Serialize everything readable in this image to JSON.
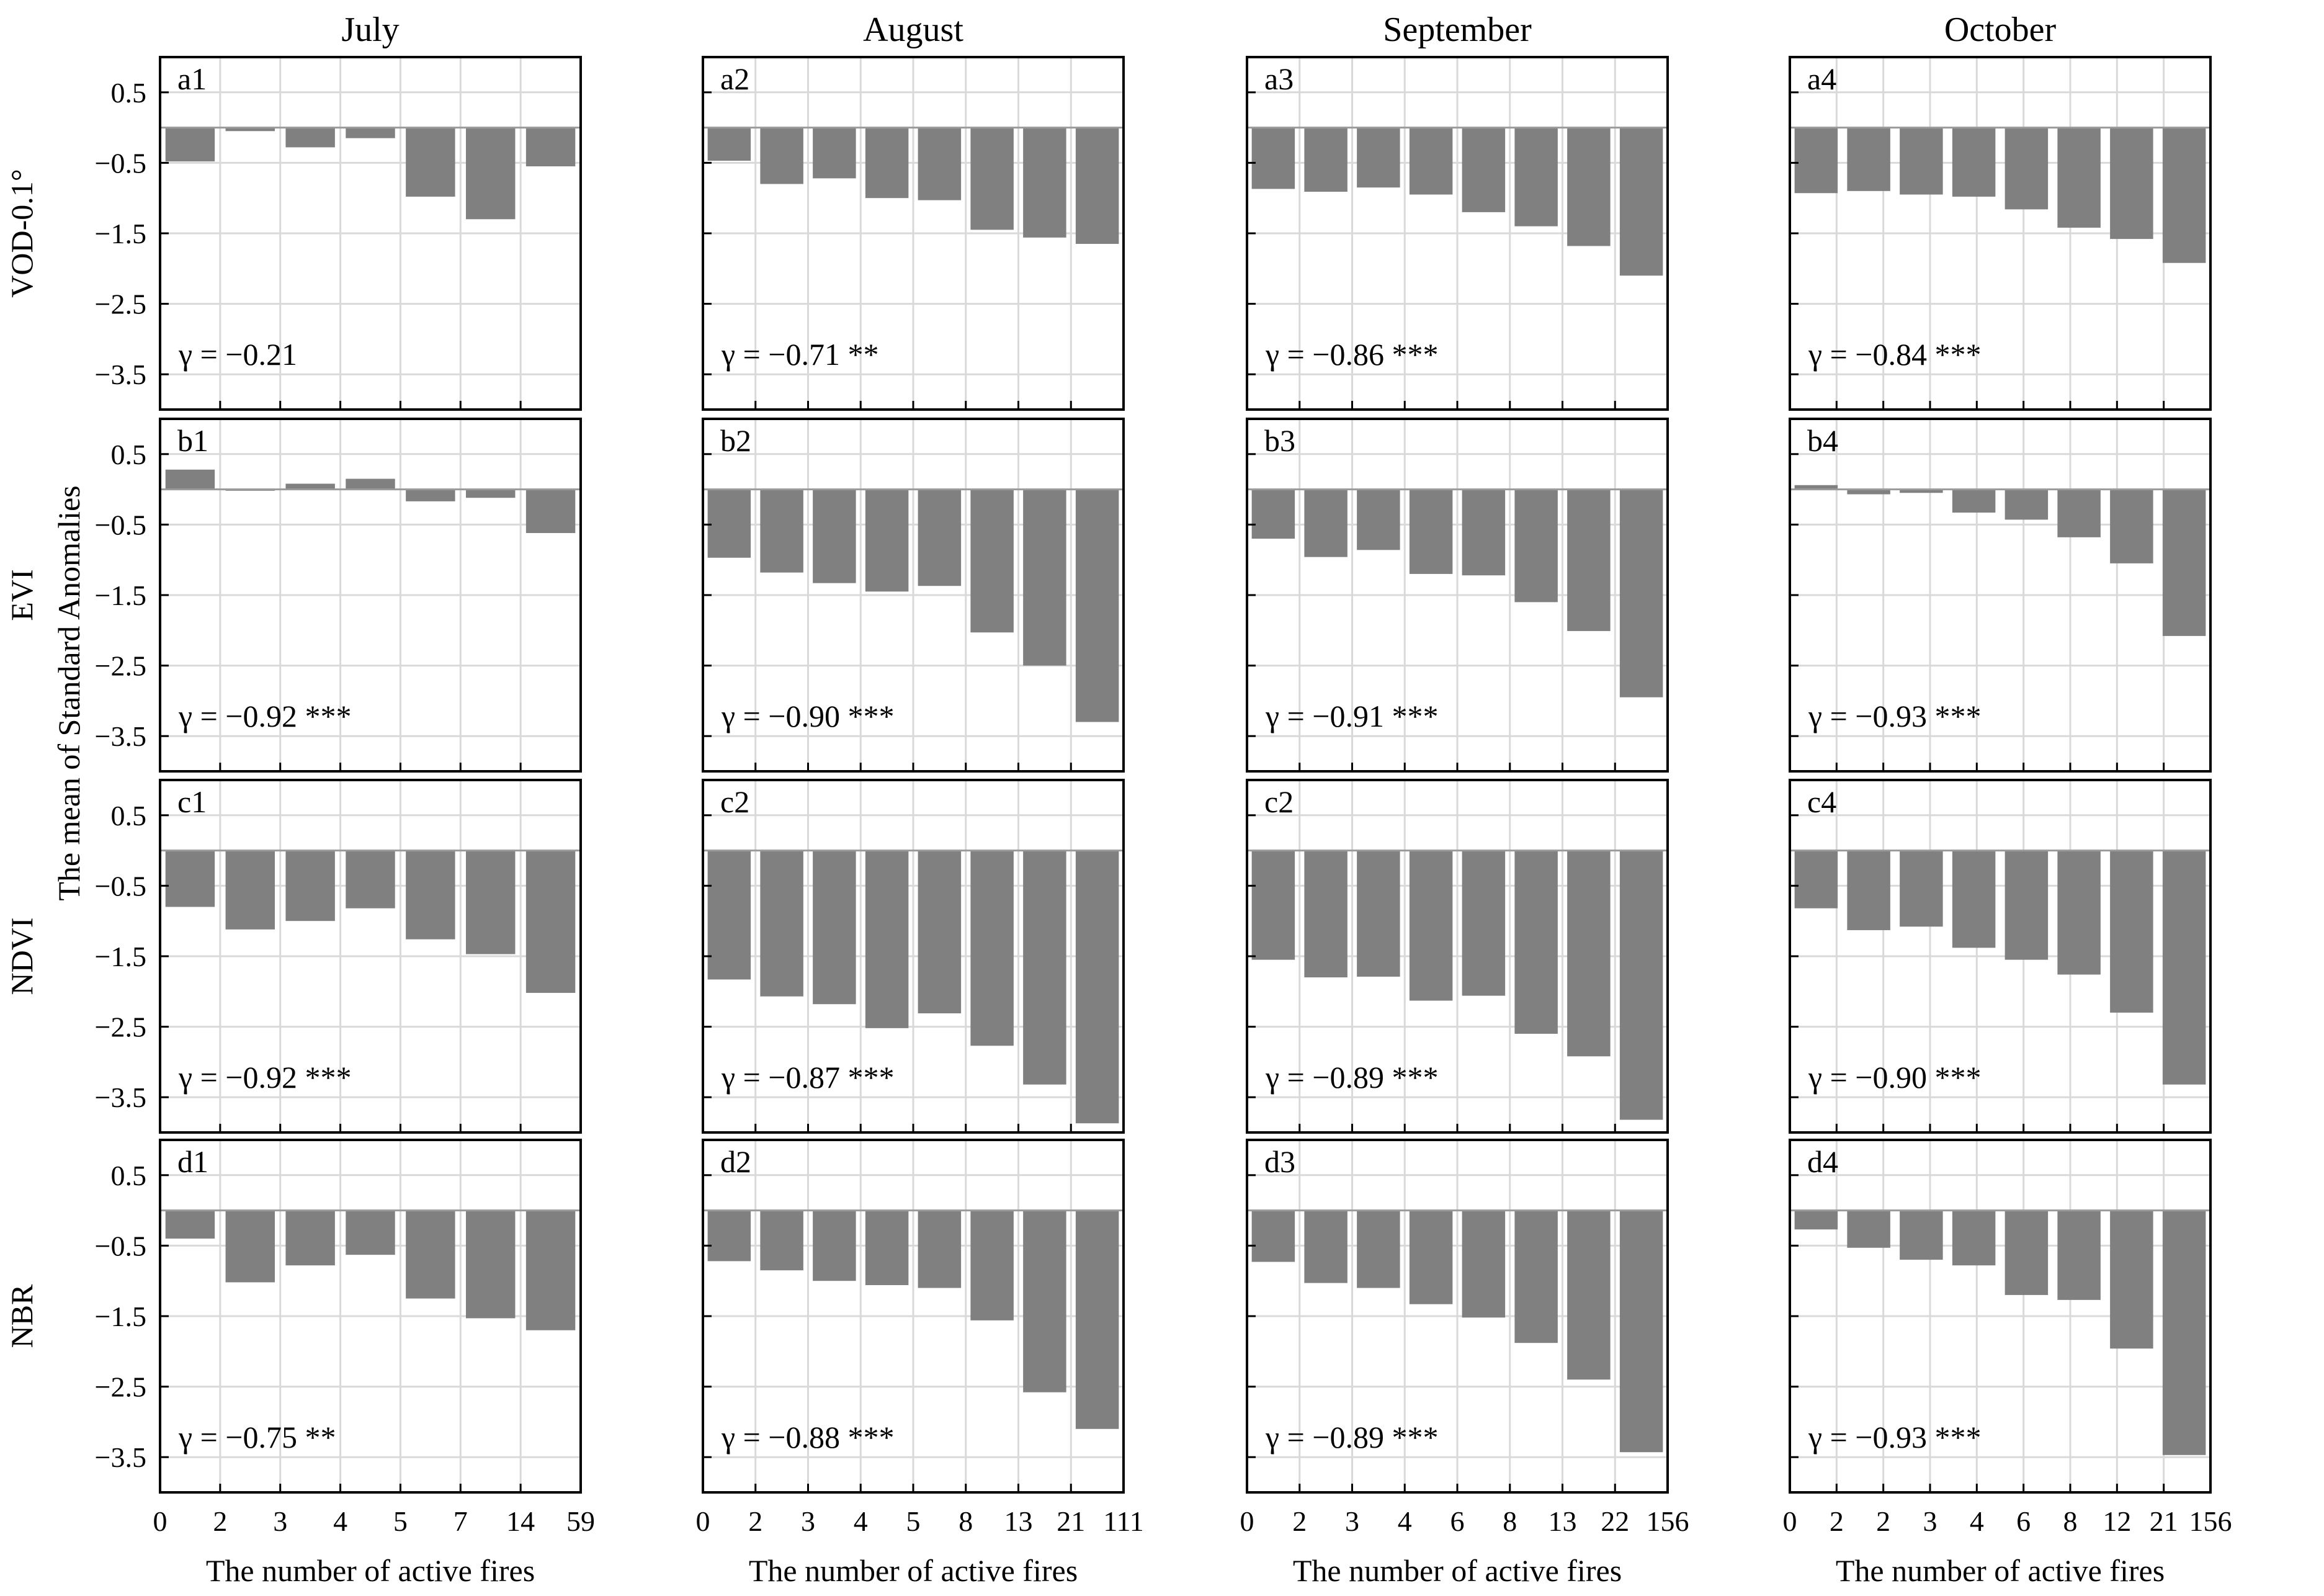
{
  "figure": {
    "y_axis_title": "The mean of Standard Anomalies",
    "x_axis_title": "The number of active fires",
    "column_titles": [
      "July",
      "August",
      "September",
      "October"
    ],
    "row_labels": [
      "VOD-0.1°",
      "EVI",
      "NDVI",
      "NBR"
    ],
    "y_ticks": [
      "0.5",
      "-0.5",
      "-1.5",
      "-2.5",
      "-3.5"
    ],
    "colors": {
      "bar": "#808080",
      "grid": "#d9d9d9",
      "frame": "#000000"
    }
  },
  "chart_data": [
    {
      "type": "bar",
      "id": "a1",
      "row": "VOD-0.1°",
      "month": "July",
      "x_ticks": [
        "0",
        "2",
        "3",
        "4",
        "5",
        "7",
        "14",
        "59"
      ],
      "values": [
        -0.48,
        -0.05,
        -0.28,
        -0.15,
        -0.98,
        -1.3,
        -0.55
      ],
      "r_text": "γ = −0.21",
      "ylim": [
        -4.0,
        1.0
      ]
    },
    {
      "type": "bar",
      "id": "a2",
      "row": "VOD-0.1°",
      "month": "August",
      "x_ticks": [
        "0",
        "2",
        "3",
        "4",
        "5",
        "8",
        "13",
        "21",
        "111"
      ],
      "values": [
        -0.47,
        -0.8,
        -0.72,
        -1.0,
        -1.03,
        -1.45,
        -1.56,
        -1.65
      ],
      "r_text": "γ = −0.71 **",
      "ylim": [
        -4.0,
        1.0
      ]
    },
    {
      "type": "bar",
      "id": "a3",
      "row": "VOD-0.1°",
      "month": "September",
      "x_ticks": [
        "0",
        "2",
        "3",
        "4",
        "6",
        "8",
        "13",
        "22",
        "156"
      ],
      "values": [
        -0.87,
        -0.91,
        -0.85,
        -0.95,
        -1.2,
        -1.4,
        -1.68,
        -2.1
      ],
      "r_text": "γ = −0.86 ***",
      "ylim": [
        -4.0,
        1.0
      ]
    },
    {
      "type": "bar",
      "id": "a4",
      "row": "VOD-0.1°",
      "month": "October",
      "x_ticks": [
        "0",
        "2",
        "2",
        "3",
        "4",
        "6",
        "8",
        "12",
        "21",
        "156"
      ],
      "values": [
        -0.93,
        -0.9,
        -0.95,
        -0.98,
        -1.16,
        -1.42,
        -1.58,
        -1.92
      ],
      "r_text": "γ = −0.84 ***",
      "ylim": [
        -4.0,
        1.0
      ]
    },
    {
      "type": "bar",
      "id": "b1",
      "row": "EVI",
      "month": "July",
      "x_ticks": [
        "0",
        "2",
        "3",
        "4",
        "5",
        "7",
        "14",
        "59"
      ],
      "values": [
        0.28,
        -0.02,
        0.08,
        0.15,
        -0.17,
        -0.12,
        -0.62
      ],
      "r_text": "γ = −0.92 ***",
      "ylim": [
        -4.0,
        1.0
      ]
    },
    {
      "type": "bar",
      "id": "b2",
      "row": "EVI",
      "month": "August",
      "x_ticks": [
        "0",
        "2",
        "3",
        "4",
        "5",
        "8",
        "13",
        "21",
        "111"
      ],
      "values": [
        -0.97,
        -1.18,
        -1.33,
        -1.45,
        -1.37,
        -2.03,
        -2.5,
        -3.3
      ],
      "r_text": "γ = −0.90 ***",
      "ylim": [
        -4.0,
        1.0
      ]
    },
    {
      "type": "bar",
      "id": "b3",
      "row": "EVI",
      "month": "September",
      "x_ticks": [
        "0",
        "2",
        "3",
        "4",
        "6",
        "8",
        "13",
        "22",
        "156"
      ],
      "values": [
        -0.7,
        -0.96,
        -0.86,
        -1.2,
        -1.22,
        -1.6,
        -2.01,
        -2.95
      ],
      "r_text": "γ = −0.91 ***",
      "ylim": [
        -4.0,
        1.0
      ]
    },
    {
      "type": "bar",
      "id": "b4",
      "row": "EVI",
      "month": "October",
      "x_ticks": [
        "0",
        "2",
        "2",
        "3",
        "4",
        "6",
        "8",
        "12",
        "21",
        "156"
      ],
      "values": [
        0.06,
        -0.07,
        -0.05,
        -0.33,
        -0.43,
        -0.68,
        -1.05,
        -2.08
      ],
      "r_text": "γ = −0.93 ***",
      "ylim": [
        -4.0,
        1.0
      ]
    },
    {
      "type": "bar",
      "id": "c1",
      "row": "NDVI",
      "month": "July",
      "x_ticks": [
        "0",
        "2",
        "3",
        "4",
        "5",
        "7",
        "14",
        "59"
      ],
      "values": [
        -0.8,
        -1.12,
        -1.0,
        -0.82,
        -1.26,
        -1.47,
        -2.02
      ],
      "r_text": "γ = −0.92 ***",
      "ylim": [
        -4.0,
        1.0
      ]
    },
    {
      "type": "bar",
      "id": "c2",
      "row": "NDVI",
      "month": "August",
      "x_ticks": [
        "0",
        "2",
        "3",
        "4",
        "5",
        "8",
        "13",
        "21",
        "111"
      ],
      "values": [
        -1.83,
        -2.07,
        -2.18,
        -2.52,
        -2.31,
        -2.77,
        -3.32,
        -3.87
      ],
      "r_text": "γ = −0.87 ***",
      "ylim": [
        -4.0,
        1.0
      ]
    },
    {
      "type": "bar",
      "id": "c2b",
      "row": "NDVI",
      "month": "September",
      "x_ticks": [
        "0",
        "2",
        "3",
        "4",
        "6",
        "8",
        "13",
        "22",
        "156"
      ],
      "values": [
        -1.55,
        -1.8,
        -1.79,
        -2.13,
        -2.06,
        -2.6,
        -2.92,
        -3.82
      ],
      "r_text": "γ = −0.89 ***",
      "ylim": [
        -4.0,
        1.0
      ]
    },
    {
      "type": "bar",
      "id": "c4",
      "row": "NDVI",
      "month": "October",
      "x_ticks": [
        "0",
        "2",
        "2",
        "3",
        "4",
        "6",
        "8",
        "12",
        "21",
        "156"
      ],
      "values": [
        -0.82,
        -1.13,
        -1.08,
        -1.38,
        -1.55,
        -1.76,
        -2.3,
        -3.32
      ],
      "r_text": "γ = −0.90 ***",
      "ylim": [
        -4.0,
        1.0
      ]
    },
    {
      "type": "bar",
      "id": "d1",
      "row": "NBR",
      "month": "July",
      "x_ticks": [
        "0",
        "2",
        "3",
        "4",
        "5",
        "7",
        "14",
        "59"
      ],
      "values": [
        -0.4,
        -1.02,
        -0.78,
        -0.63,
        -1.25,
        -1.53,
        -1.7
      ],
      "r_text": "γ = −0.75 **",
      "ylim": [
        -4.0,
        1.0
      ]
    },
    {
      "type": "bar",
      "id": "d2",
      "row": "NBR",
      "month": "August",
      "x_ticks": [
        "0",
        "2",
        "3",
        "4",
        "5",
        "8",
        "13",
        "21",
        "111"
      ],
      "values": [
        -0.72,
        -0.85,
        -1.0,
        -1.06,
        -1.1,
        -1.56,
        -2.58,
        -3.1
      ],
      "r_text": "γ = −0.88 ***",
      "ylim": [
        -4.0,
        1.0
      ]
    },
    {
      "type": "bar",
      "id": "d3",
      "row": "NBR",
      "month": "September",
      "x_ticks": [
        "0",
        "2",
        "3",
        "4",
        "6",
        "8",
        "13",
        "22",
        "156"
      ],
      "values": [
        -0.73,
        -1.03,
        -1.1,
        -1.33,
        -1.52,
        -1.88,
        -2.4,
        -3.43
      ],
      "r_text": "γ = −0.89 ***",
      "ylim": [
        -4.0,
        1.0
      ]
    },
    {
      "type": "bar",
      "id": "d4",
      "row": "NBR",
      "month": "October",
      "x_ticks": [
        "0",
        "2",
        "2",
        "3",
        "4",
        "6",
        "8",
        "12",
        "21",
        "156"
      ],
      "values": [
        -0.27,
        -0.53,
        -0.7,
        -0.78,
        -1.2,
        -1.27,
        -1.96,
        -3.47
      ],
      "r_text": "γ = −0.93 ***",
      "ylim": [
        -4.0,
        1.0
      ]
    }
  ],
  "panel_labels": [
    "a1",
    "a2",
    "a3",
    "a4",
    "b1",
    "b2",
    "b3",
    "b4",
    "c1",
    "c2",
    "c2",
    "c4",
    "d1",
    "d2",
    "d3",
    "d4"
  ]
}
